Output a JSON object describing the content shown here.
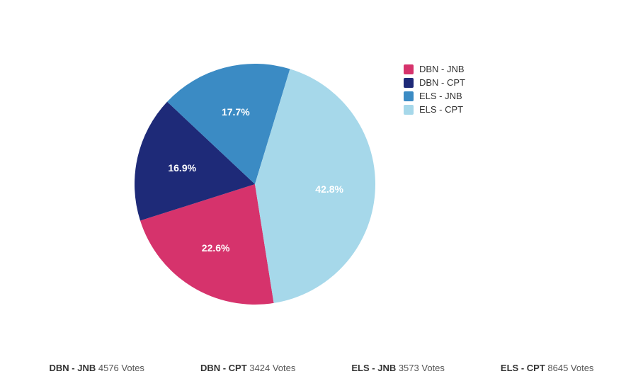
{
  "chart": {
    "type": "pie",
    "background_color": "#ffffff",
    "label_fontsize": 14,
    "label_color": "#ffffff",
    "legend_fontsize": 13,
    "legend_text_color": "#333333",
    "start_angle_deg": -10,
    "slices": [
      {
        "label": "DBN - JNB",
        "percent": 22.6,
        "color": "#d6336c",
        "votes": 4576
      },
      {
        "label": "DBN - CPT",
        "percent": 16.9,
        "color": "#1e2a78",
        "votes": 3424
      },
      {
        "label": "ELS - JNB",
        "percent": 17.7,
        "color": "#3b8bc4",
        "votes": 3573
      },
      {
        "label": "ELS - CPT",
        "percent": 42.8,
        "color": "#a6d8ea",
        "votes": 8645
      }
    ]
  },
  "footer": {
    "suffix": "Votes"
  }
}
